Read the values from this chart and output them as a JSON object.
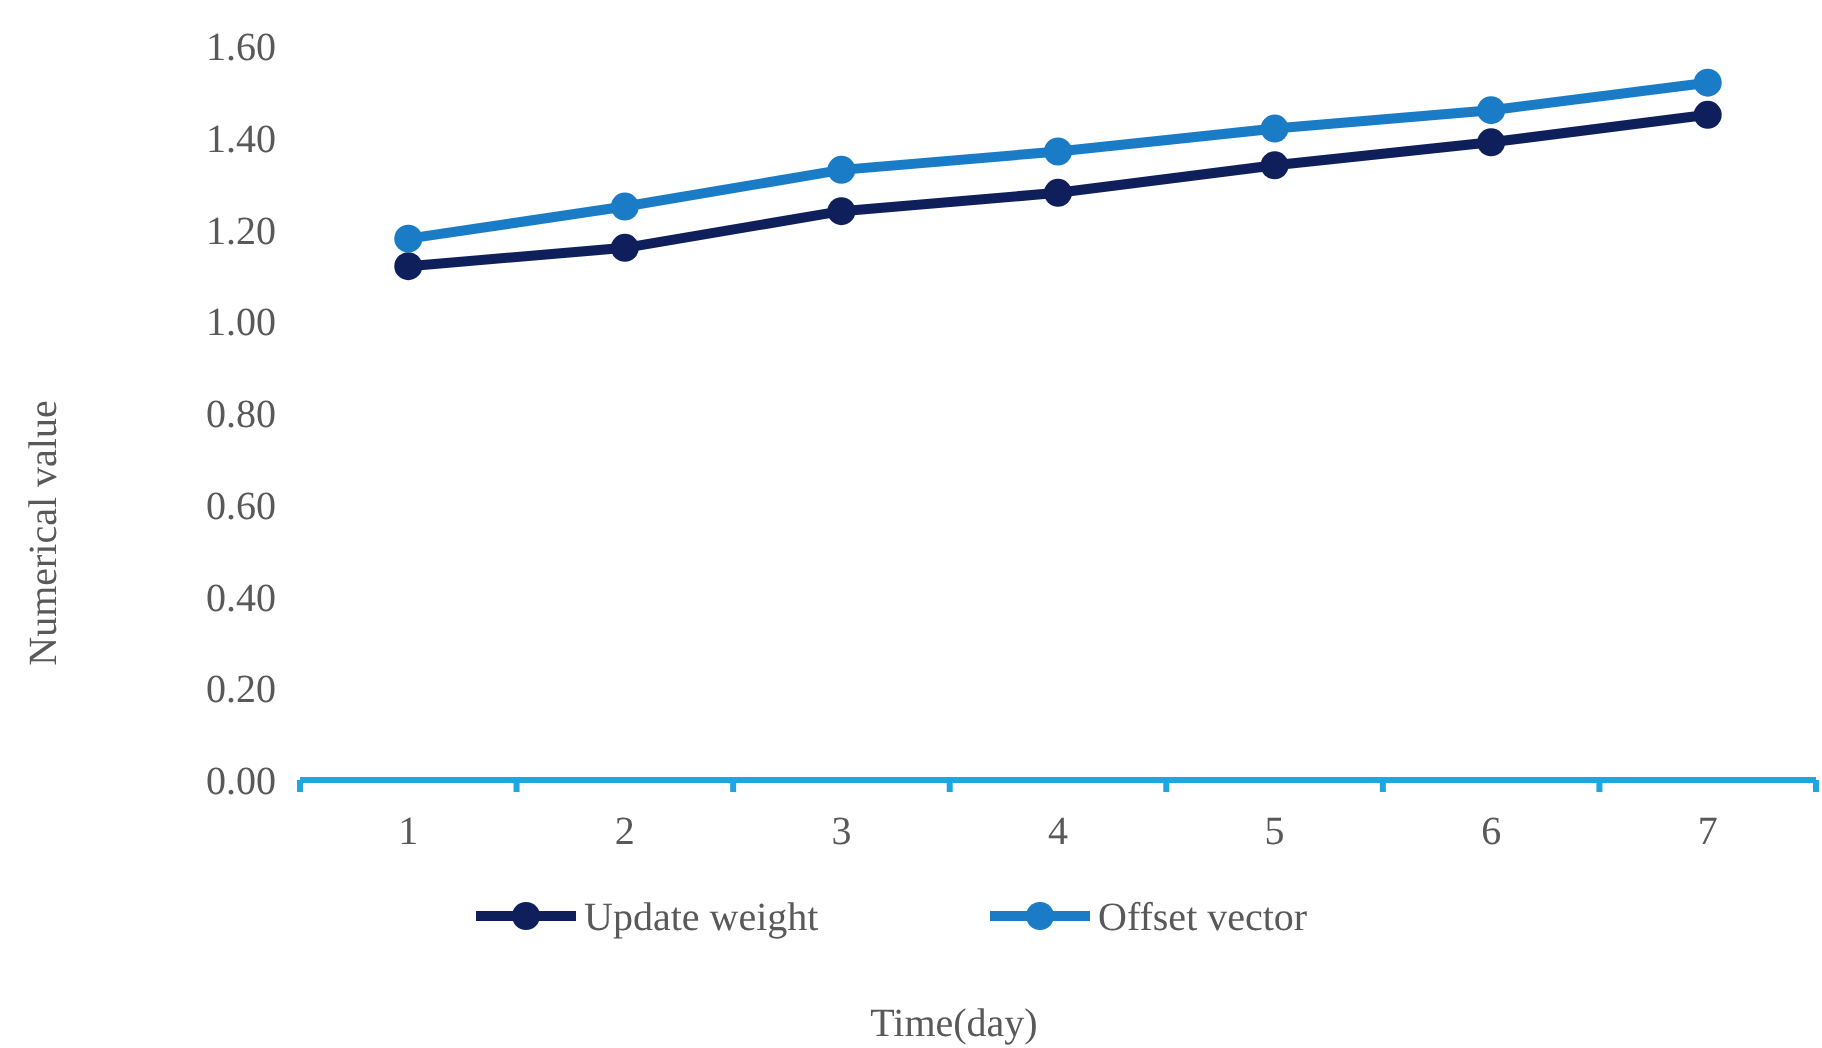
{
  "chart_data": {
    "type": "line",
    "xlabel": "Time(day)",
    "ylabel": "Numerical value",
    "categories": [
      "1",
      "2",
      "3",
      "4",
      "5",
      "6",
      "7"
    ],
    "series": [
      {
        "name": "Update weight",
        "color": "#0e1f5b",
        "values": [
          1.12,
          1.16,
          1.24,
          1.28,
          1.34,
          1.39,
          1.45
        ]
      },
      {
        "name": "Offset vector",
        "color": "#1a7cc6",
        "values": [
          1.18,
          1.25,
          1.33,
          1.37,
          1.42,
          1.46,
          1.52
        ]
      }
    ],
    "ylim": [
      0,
      1.6
    ],
    "yticks": [
      {
        "value": 0,
        "label": "0.00"
      },
      {
        "value": 0.2,
        "label": "0.20"
      },
      {
        "value": 0.4,
        "label": "0.40"
      },
      {
        "value": 0.6,
        "label": "0.60"
      },
      {
        "value": 0.8,
        "label": "0.80"
      },
      {
        "value": 1,
        "label": "1.00"
      },
      {
        "value": 1.2,
        "label": "1.20"
      },
      {
        "value": 1.4,
        "label": "1.40"
      },
      {
        "value": 1.6,
        "label": "1.60"
      }
    ],
    "grid": false,
    "legend": "bottom",
    "marker": "circle",
    "line_style": "solid"
  }
}
